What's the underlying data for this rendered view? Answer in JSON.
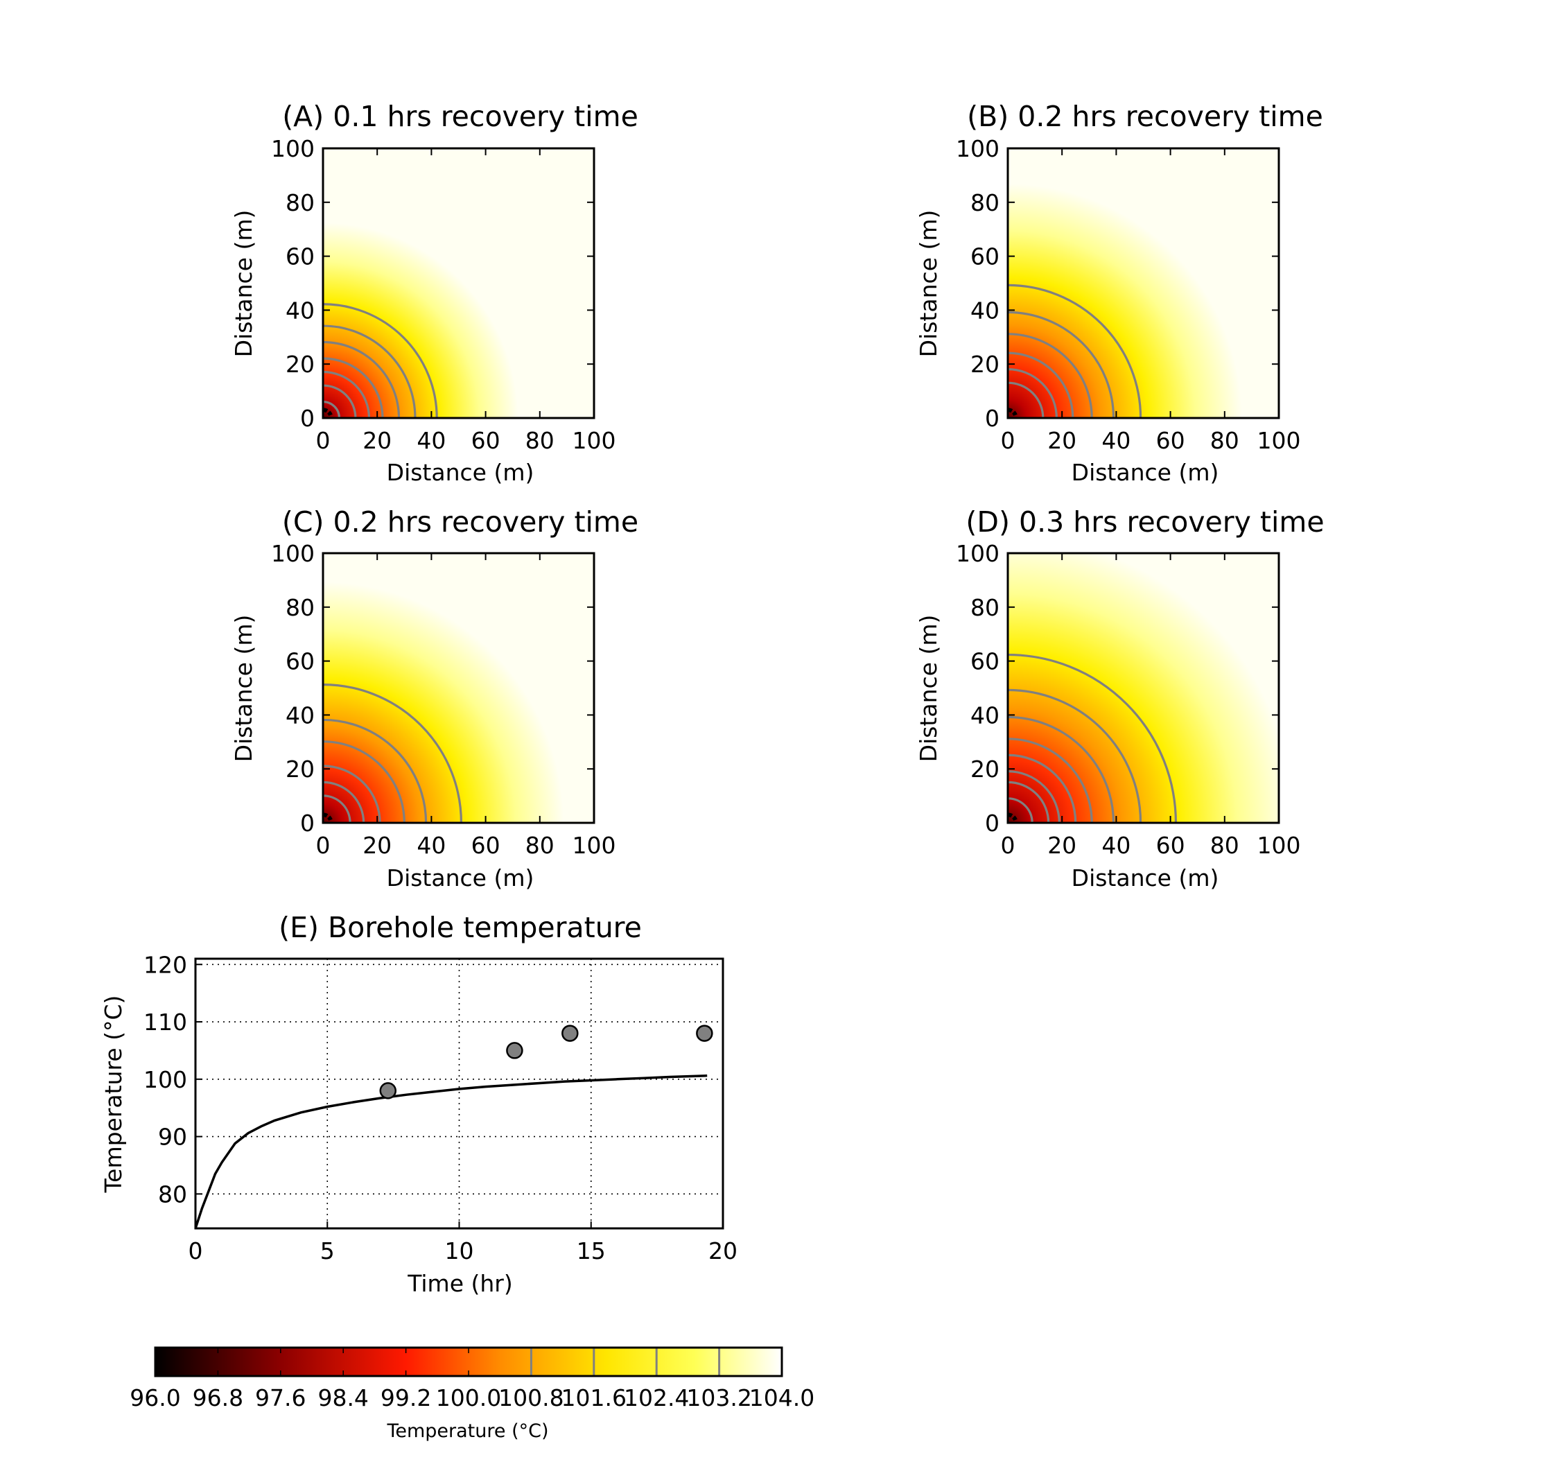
{
  "colors": {
    "colormap": [
      "#000000",
      "#8c0000",
      "#ff1a00",
      "#ff8c00",
      "#ffe600",
      "#ffff55",
      "#ffffff"
    ],
    "contour": "#808080",
    "marker_fill": "#808080",
    "curve": "#000000",
    "well": "#000000"
  },
  "chart_data": [
    {
      "type": "heatmap",
      "panel": "A",
      "title": "(A) 0.1 hrs recovery time",
      "xlabel": "Distance (m)",
      "ylabel": "Distance (m)",
      "xlim": [
        0,
        100
      ],
      "ylim": [
        0,
        100
      ],
      "xticks": [
        "0",
        "20",
        "40",
        "60",
        "80",
        "100"
      ],
      "yticks": [
        "0",
        "20",
        "40",
        "60",
        "80",
        "100"
      ],
      "contour_radii_m": [
        6,
        12,
        17,
        22,
        28,
        34,
        42
      ],
      "field_scale_m": 30,
      "well_radius_m": 3
    },
    {
      "type": "heatmap",
      "panel": "B",
      "title": "(B) 0.2 hrs recovery time",
      "xlabel": "Distance (m)",
      "ylabel": "Distance (m)",
      "xlim": [
        0,
        100
      ],
      "ylim": [
        0,
        100
      ],
      "xticks": [
        "0",
        "20",
        "40",
        "60",
        "80",
        "100"
      ],
      "yticks": [
        "0",
        "20",
        "40",
        "60",
        "80",
        "100"
      ],
      "contour_radii_m": [
        13,
        18,
        24,
        31,
        39,
        49
      ],
      "field_scale_m": 36,
      "well_radius_m": 3
    },
    {
      "type": "heatmap",
      "panel": "C",
      "title": "(C) 0.2 hrs recovery time",
      "xlabel": "Distance (m)",
      "ylabel": "Distance (m)",
      "xlim": [
        0,
        100
      ],
      "ylim": [
        0,
        100
      ],
      "xticks": [
        "0",
        "20",
        "40",
        "60",
        "80",
        "100"
      ],
      "yticks": [
        "0",
        "20",
        "40",
        "60",
        "80",
        "100"
      ],
      "contour_radii_m": [
        10,
        15,
        21,
        30,
        38,
        51
      ],
      "field_scale_m": 37,
      "well_radius_m": 3
    },
    {
      "type": "heatmap",
      "panel": "D",
      "title": "(D) 0.3 hrs recovery time",
      "xlabel": "Distance (m)",
      "ylabel": "Distance (m)",
      "xlim": [
        0,
        100
      ],
      "ylim": [
        0,
        100
      ],
      "xticks": [
        "0",
        "20",
        "40",
        "60",
        "80",
        "100"
      ],
      "yticks": [
        "0",
        "20",
        "40",
        "60",
        "80",
        "100"
      ],
      "contour_radii_m": [
        9,
        15,
        19,
        25,
        31,
        39,
        49,
        62
      ],
      "field_scale_m": 44,
      "well_radius_m": 3
    },
    {
      "type": "line",
      "panel": "E",
      "title": "(E) Borehole temperature",
      "xlabel": "Time (hr)",
      "ylabel": "Temperature (°C)",
      "xlim": [
        0,
        20
      ],
      "ylim": [
        74,
        121
      ],
      "xticks": [
        0,
        5,
        10,
        15,
        20
      ],
      "yticks": [
        80,
        90,
        100,
        110,
        120
      ],
      "grid": true,
      "curve": {
        "x": [
          0,
          0.25,
          0.5,
          0.75,
          1,
          1.5,
          2,
          2.5,
          3,
          4,
          5,
          6,
          7,
          8,
          9,
          10,
          11,
          12,
          13,
          14,
          15,
          16,
          17,
          18,
          19.4
        ],
        "y": [
          74,
          77.5,
          80.5,
          83.5,
          85.5,
          88.8,
          90.6,
          91.8,
          92.8,
          94.2,
          95.2,
          96,
          96.7,
          97.3,
          97.8,
          98.3,
          98.7,
          99,
          99.3,
          99.6,
          99.8,
          100,
          100.2,
          100.4,
          100.6
        ]
      },
      "points": {
        "x": [
          7.3,
          12.1,
          14.2,
          19.3
        ],
        "y": [
          98,
          105,
          108,
          108
        ]
      }
    }
  ],
  "colorbar": {
    "label": "Temperature (°C)",
    "min": 96.0,
    "max": 104.0,
    "tick_labels": [
      "96.0",
      "96.8",
      "97.6",
      "98.4",
      "99.2",
      "100.0",
      "100.8",
      "101.6",
      "102.4",
      "103.2",
      "104.0"
    ],
    "contour_levels": [
      100.8,
      101.6,
      102.4,
      103.2
    ]
  }
}
